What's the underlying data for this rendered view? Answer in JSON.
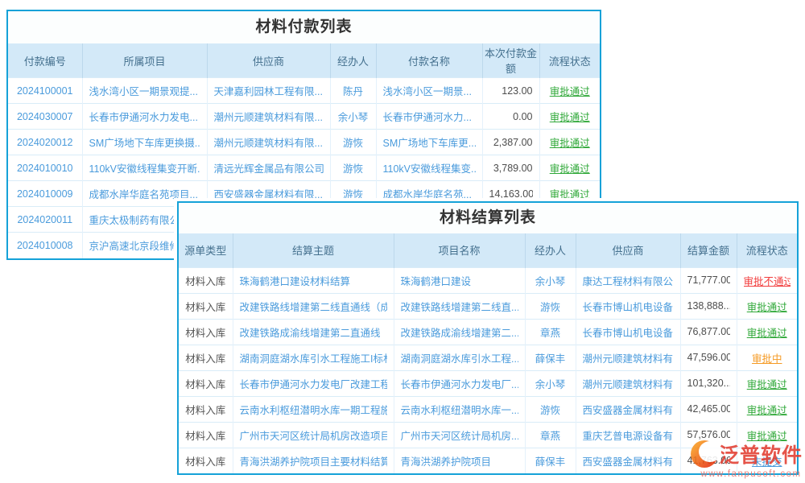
{
  "colors": {
    "panel_border": "#15a2d8",
    "header_bg": "#d3e9f8",
    "header_text": "#44708e",
    "link_text": "#4a9bdc",
    "status_pass": "#2fa838",
    "status_fail": "#f23b3b",
    "status_pending": "#f59a23",
    "status_unsubmitted": "#4a9bdc",
    "watermark_red": "#e23d30",
    "logo_orange": "#f7941d"
  },
  "tables": {
    "payment": {
      "title": "材料付款列表",
      "columns": [
        "付款编号",
        "所属项目",
        "供应商",
        "经办人",
        "付款名称",
        "本次付款金额",
        "流程状态"
      ],
      "rows": [
        {
          "c": [
            "2024100001",
            "浅水湾小区一期景观提...",
            "天津嘉利园林工程有限...",
            "陈丹",
            "浅水湾小区一期景...",
            "123.00"
          ],
          "status": {
            "text": "审批通过",
            "kind": "pass"
          }
        },
        {
          "c": [
            "2024030007",
            "长春市伊通河水力发电...",
            "潮州元顺建筑材料有限...",
            "余小琴",
            "长春市伊通河水力...",
            "0.00"
          ],
          "status": {
            "text": "审批通过",
            "kind": "pass"
          }
        },
        {
          "c": [
            "2024020012",
            "SM广场地下车库更换摄...",
            "潮州元顺建筑材料有限...",
            "游恢",
            "SM广场地下车库更...",
            "2,387.00"
          ],
          "status": {
            "text": "审批通过",
            "kind": "pass"
          }
        },
        {
          "c": [
            "2024010010",
            "110kV安徽线程集变开断...",
            "清远光辉金属品有限公司",
            "游恢",
            "110kV安徽线程集变...",
            "3,789.00"
          ],
          "status": {
            "text": "审批通过",
            "kind": "pass"
          }
        },
        {
          "c": [
            "2024010009",
            "成都水岸华庭名苑项目...",
            "西安盛器金属材料有限...",
            "游恢",
            "成都水岸华庭名苑...",
            "14,163.00"
          ],
          "status": {
            "text": "审批通过",
            "kind": "pass"
          }
        },
        {
          "c": [
            "2024020011",
            "重庆太极制药有限公司",
            "",
            "",
            "",
            ""
          ],
          "status": {
            "text": "",
            "kind": "none"
          }
        },
        {
          "c": [
            "2024010008",
            "京沪高速北京段维修",
            "",
            "",
            "",
            ""
          ],
          "status": {
            "text": "",
            "kind": "none"
          }
        }
      ]
    },
    "settlement": {
      "title": "材料结算列表",
      "columns": [
        "源单类型",
        "结算主题",
        "项目名称",
        "经办人",
        "供应商",
        "结算金额",
        "流程状态"
      ],
      "rows": [
        {
          "c": [
            "材料入库",
            "珠海鹤港口建设材料结算",
            "珠海鹤港口建设",
            "余小琴",
            "康达工程材料有限公司",
            "71,777.00"
          ],
          "status": {
            "text": "审批不通过",
            "kind": "fail"
          }
        },
        {
          "c": [
            "材料入库",
            "改建铁路线增建第二线直通线（成...",
            "改建铁路线增建第二线直...",
            "游恢",
            "长春市博山机电设备...",
            "138,888..."
          ],
          "status": {
            "text": "审批通过",
            "kind": "pass"
          }
        },
        {
          "c": [
            "材料入库",
            "改建铁路成渝线增建第二直通线（...",
            "改建铁路成渝线增建第二...",
            "章燕",
            "长春市博山机电设备...",
            "76,877.00"
          ],
          "status": {
            "text": "审批通过",
            "kind": "pass"
          }
        },
        {
          "c": [
            "材料入库",
            "湖南洞庭湖水库引水工程施工I标材...",
            "湖南洞庭湖水库引水工程...",
            "薛保丰",
            "潮州元顺建筑材料有...",
            "47,596.00"
          ],
          "status": {
            "text": "审批中",
            "kind": "pending"
          }
        },
        {
          "c": [
            "材料入库",
            "长春市伊通河水力发电厂改建工程...",
            "长春市伊通河水力发电厂...",
            "余小琴",
            "潮州元顺建筑材料有...",
            "101,320..."
          ],
          "status": {
            "text": "审批通过",
            "kind": "pass"
          }
        },
        {
          "c": [
            "材料入库",
            "云南水利枢纽潜明水库一期工程施...",
            "云南水利枢纽潜明水库一...",
            "游恢",
            "西安盛器金属材料有...",
            "42,465.00"
          ],
          "status": {
            "text": "审批通过",
            "kind": "pass"
          }
        },
        {
          "c": [
            "材料入库",
            "广州市天河区统计局机房改造项目...",
            "广州市天河区统计局机房...",
            "章燕",
            "重庆艺普电源设备有...",
            "57,576.00"
          ],
          "status": {
            "text": "审批通过",
            "kind": "pass"
          }
        },
        {
          "c": [
            "材料入库",
            "青海洪湖养护院项目主要材料结算",
            "青海洪湖养护院项目",
            "薛保丰",
            "西安盛器金属材料有...",
            "41,763.00"
          ],
          "status": {
            "text": "未提交",
            "kind": "unsubmitted"
          }
        }
      ]
    }
  },
  "watermark": {
    "brand": "泛普软件",
    "url": "www.fanpusoft.com",
    "logo": "fanpu-swoosh-logo"
  }
}
